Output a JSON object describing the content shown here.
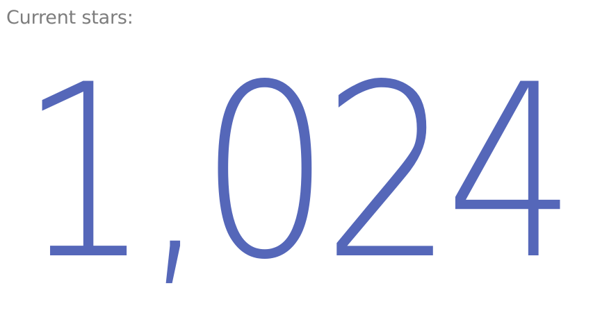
{
  "stars_widget": {
    "label": "Current stars:",
    "count": "1,024",
    "count_color": "#5567b9",
    "label_color": "#7d7d7d"
  }
}
